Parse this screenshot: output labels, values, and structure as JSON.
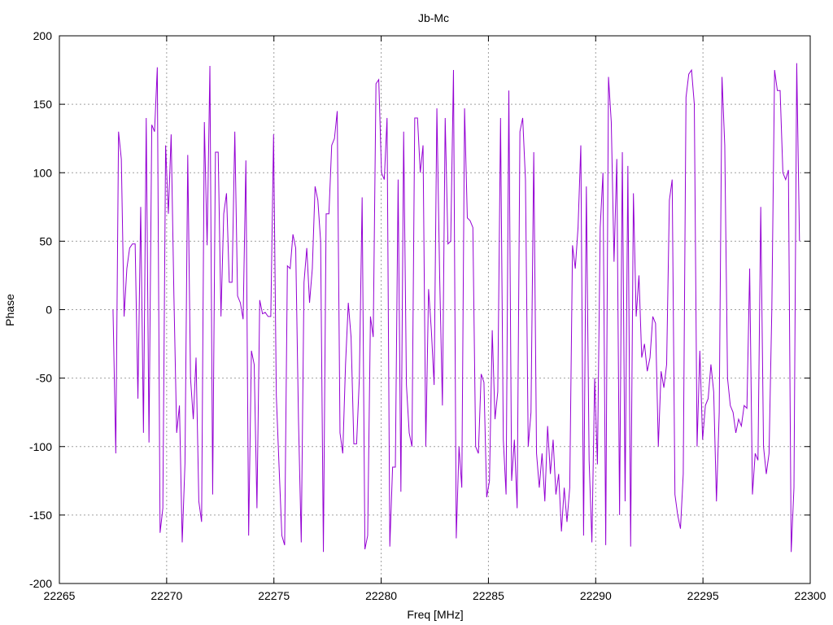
{
  "chart_data": {
    "type": "line",
    "title": "Jb-Mc",
    "xlabel": "Freq [MHz]",
    "ylabel": "Phase",
    "xlim": [
      22265,
      22300
    ],
    "ylim": [
      -200,
      200
    ],
    "x_ticks": [
      22265,
      22270,
      22275,
      22280,
      22285,
      22290,
      22295,
      22300
    ],
    "y_ticks": [
      -200,
      -150,
      -100,
      -50,
      0,
      50,
      100,
      150,
      200
    ],
    "grid": true,
    "legend": "none",
    "series": [
      {
        "color": "#9400d3",
        "x_start": 22267.5,
        "x_end": 22299.5,
        "values": [
          0,
          -105,
          130,
          110,
          -5,
          30,
          45,
          48,
          48,
          -65,
          75,
          -90,
          140,
          -97,
          135,
          130,
          177,
          -163,
          -145,
          120,
          70,
          128,
          10,
          -90,
          -70,
          -170,
          -112,
          113,
          -50,
          -80,
          -35,
          -140,
          -155,
          137,
          47,
          178,
          -135,
          115,
          115,
          -5,
          70,
          85,
          20,
          20,
          130,
          10,
          5,
          -7,
          109,
          -165,
          -30,
          -40,
          -145,
          7,
          -3,
          -2,
          -5,
          -5,
          128,
          -63,
          -115,
          -165,
          -172,
          32,
          30,
          55,
          45,
          -80,
          -170,
          20,
          45,
          5,
          30,
          90,
          80,
          50,
          -177,
          70,
          70,
          120,
          125,
          145,
          -90,
          -105,
          -40,
          5,
          -20,
          -98,
          -98,
          -50,
          82,
          -175,
          -165,
          -5,
          -20,
          165,
          168,
          100,
          95,
          140,
          -173,
          -115,
          -115,
          95,
          -133,
          130,
          -55,
          -90,
          -100,
          140,
          140,
          100,
          120,
          -100,
          15,
          -15,
          -55,
          147,
          25,
          -70,
          140,
          48,
          50,
          175,
          -167,
          -100,
          -130,
          147,
          67,
          65,
          60,
          -100,
          -105,
          -47,
          -53,
          -137,
          -125,
          -15,
          -80,
          -60,
          140,
          -95,
          -135,
          160,
          -125,
          -95,
          -145,
          130,
          140,
          95,
          -100,
          -75,
          115,
          -105,
          -130,
          -105,
          -140,
          -85,
          -120,
          -95,
          -135,
          -120,
          -162,
          -130,
          -155,
          -130,
          47,
          30,
          60,
          120,
          -165,
          90,
          -110,
          -170,
          -50,
          -113,
          60,
          100,
          -172,
          170,
          137,
          35,
          110,
          -150,
          115,
          -140,
          105,
          -173,
          85,
          -5,
          25,
          -35,
          -25,
          -45,
          -35,
          -5,
          -10,
          -100,
          -45,
          -57,
          -40,
          80,
          95,
          -135,
          -150,
          -160,
          -120,
          155,
          172,
          175,
          150,
          -100,
          -30,
          -95,
          -70,
          -65,
          -40,
          -60,
          -140,
          -75,
          170,
          120,
          -50,
          -70,
          -75,
          -90,
          -80,
          -85,
          -70,
          -72,
          30,
          -135,
          -105,
          -110,
          75,
          -100,
          -120,
          -105,
          0,
          175,
          160,
          160,
          100,
          95,
          102,
          -177,
          -130,
          180,
          50
        ]
      }
    ]
  }
}
